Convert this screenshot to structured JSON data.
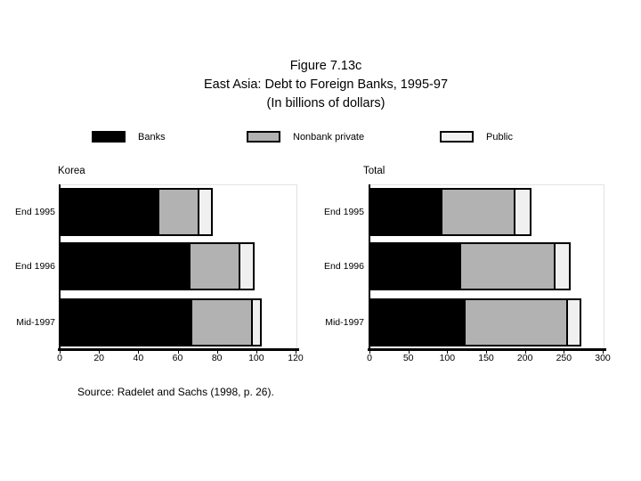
{
  "figure": {
    "title_line1": "Figure 7.13c",
    "title_line2": "East Asia: Debt to Foreign Banks, 1995-97",
    "title_line3": "(In billions of dollars)",
    "source": "Source: Radelet and Sachs (1998, p. 26)."
  },
  "legend": {
    "items": [
      {
        "label": "Banks",
        "color": "#000000"
      },
      {
        "label": "Nonbank private",
        "color": "#b2b2b2"
      },
      {
        "label": "Public",
        "color": "#f0f0f0"
      }
    ]
  },
  "chart_data": [
    {
      "type": "bar",
      "orientation": "horizontal",
      "stacked": true,
      "title": "Korea",
      "categories": [
        "End 1995",
        "End 1996",
        "Mid-1997"
      ],
      "series": [
        {
          "name": "Banks",
          "color": "#000000",
          "values": [
            50,
            66,
            67
          ]
        },
        {
          "name": "Nonbank private",
          "color": "#b2b2b2",
          "values": [
            21,
            26,
            31
          ]
        },
        {
          "name": "Public",
          "color": "#f0f0f0",
          "values": [
            7,
            7,
            5
          ]
        }
      ],
      "xlim": [
        0,
        120
      ],
      "xticks": [
        0,
        20,
        40,
        60,
        80,
        100,
        120
      ],
      "xlabel": "",
      "ylabel": "",
      "grid": false,
      "legend_position": "top"
    },
    {
      "type": "bar",
      "orientation": "horizontal",
      "stacked": true,
      "title": "Total",
      "categories": [
        "End 1995",
        "End 1996",
        "Mid-1997"
      ],
      "series": [
        {
          "name": "Banks",
          "color": "#000000",
          "values": [
            91,
            115,
            121
          ]
        },
        {
          "name": "Nonbank private",
          "color": "#b2b2b2",
          "values": [
            96,
            124,
            134
          ]
        },
        {
          "name": "Public",
          "color": "#f0f0f0",
          "values": [
            21,
            20,
            17
          ]
        }
      ],
      "xlim": [
        0,
        300
      ],
      "xticks": [
        0,
        50,
        100,
        150,
        200,
        250,
        300
      ],
      "xlabel": "",
      "ylabel": "",
      "grid": false,
      "legend_position": "top"
    }
  ]
}
